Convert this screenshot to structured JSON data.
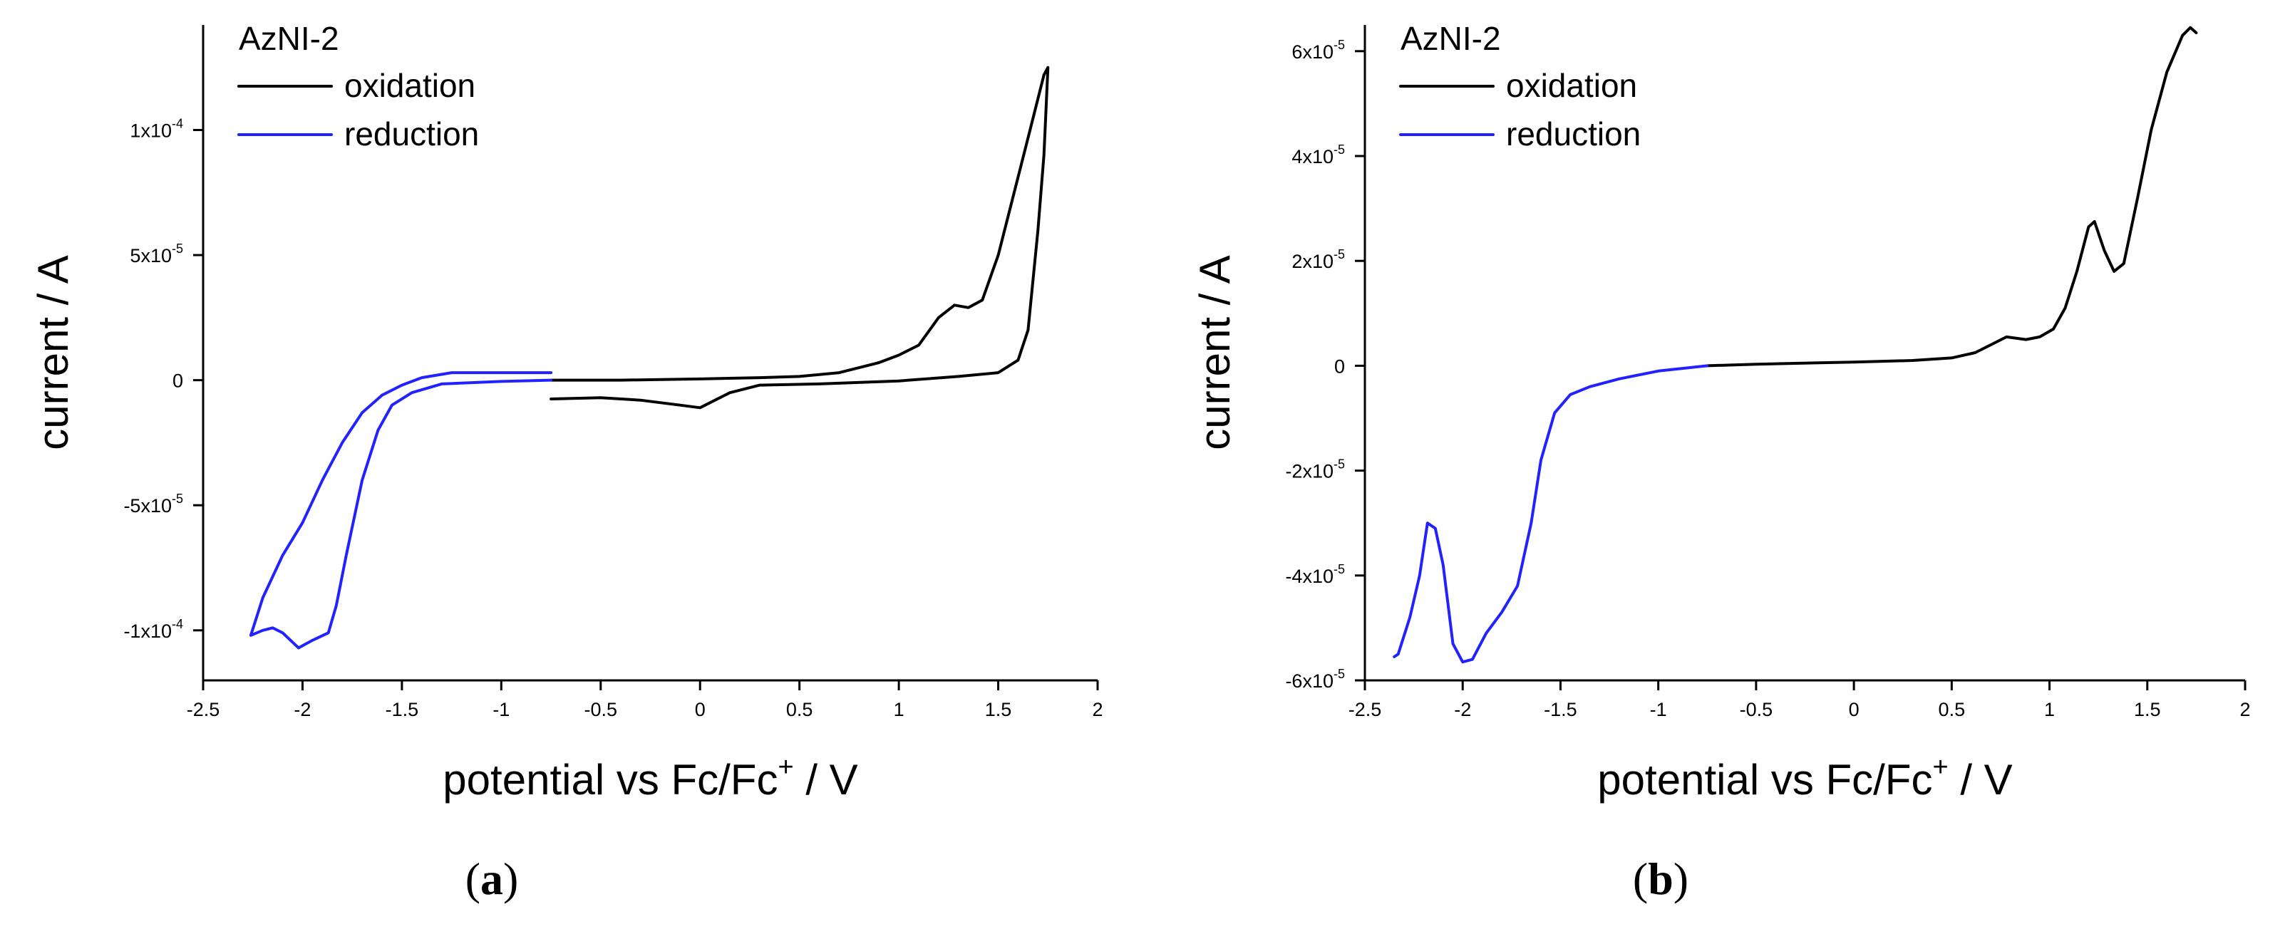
{
  "chart_data": [
    {
      "type": "line",
      "panel_label": "a",
      "title": "AzNI-2",
      "xlabel": "potential vs Fc/Fc",
      "xlabel_sup": "+",
      "xlabel_unit": " / V",
      "ylabel": "current / A",
      "xlim": [
        -2.5,
        2
      ],
      "ylim": [
        -0.00012,
        0.000142
      ],
      "xticks": [
        -2.5,
        -2,
        -1.5,
        -1,
        -0.5,
        0,
        0.5,
        1,
        1.5,
        2
      ],
      "xtick_labels": [
        "-2.5",
        "-2",
        "-1.5",
        "-1",
        "-0.5",
        "0",
        "0.5",
        "1",
        "1.5",
        "2"
      ],
      "yticks": [
        -0.0001,
        -5e-05,
        0,
        5e-05,
        0.0001
      ],
      "ytick_labels": [
        {
          "mantissa": "-1x10",
          "exp": "-4"
        },
        {
          "mantissa": "-5x10",
          "exp": "-5"
        },
        {
          "mantissa": "0",
          "exp": ""
        },
        {
          "mantissa": "5x10",
          "exp": "-5"
        },
        {
          "mantissa": "1x10",
          "exp": "-4"
        }
      ],
      "legend_position": "top-left",
      "series": [
        {
          "name": "oxidation",
          "color": "#000000",
          "points": [
            [
              -0.75,
              0.0
            ],
            [
              -0.4,
              0.0
            ],
            [
              0.0,
              5e-07
            ],
            [
              0.3,
              1e-06
            ],
            [
              0.5,
              1.5e-06
            ],
            [
              0.7,
              3e-06
            ],
            [
              0.8,
              5e-06
            ],
            [
              0.9,
              7e-06
            ],
            [
              1.0,
              1e-05
            ],
            [
              1.1,
              1.4e-05
            ],
            [
              1.2,
              2.5e-05
            ],
            [
              1.28,
              3e-05
            ],
            [
              1.35,
              2.9e-05
            ],
            [
              1.42,
              3.2e-05
            ],
            [
              1.5,
              5e-05
            ],
            [
              1.58,
              7.5e-05
            ],
            [
              1.66,
              0.0001
            ],
            [
              1.73,
              0.000122
            ],
            [
              1.75,
              0.000125
            ],
            [
              1.73,
              9e-05
            ],
            [
              1.7,
              6e-05
            ],
            [
              1.65,
              2e-05
            ],
            [
              1.6,
              8e-06
            ],
            [
              1.5,
              3e-06
            ],
            [
              1.3,
              1.5e-06
            ],
            [
              1.0,
              -3e-07
            ],
            [
              0.6,
              -1.5e-06
            ],
            [
              0.3,
              -2e-06
            ],
            [
              0.15,
              -5e-06
            ],
            [
              0.0,
              -1.1e-05
            ],
            [
              -0.1,
              -1e-05
            ],
            [
              -0.3,
              -8e-06
            ],
            [
              -0.5,
              -7e-06
            ],
            [
              -0.75,
              -7.5e-06
            ]
          ]
        },
        {
          "name": "reduction",
          "color": "#2222ff",
          "points": [
            [
              -0.75,
              0.0
            ],
            [
              -1.0,
              -5e-07
            ],
            [
              -1.3,
              -1.5e-06
            ],
            [
              -1.45,
              -5e-06
            ],
            [
              -1.55,
              -1e-05
            ],
            [
              -1.62,
              -2e-05
            ],
            [
              -1.7,
              -4e-05
            ],
            [
              -1.78,
              -7e-05
            ],
            [
              -1.83,
              -9e-05
            ],
            [
              -1.87,
              -0.000101
            ],
            [
              -1.95,
              -0.000104
            ],
            [
              -2.02,
              -0.000107
            ],
            [
              -2.1,
              -0.000101
            ],
            [
              -2.15,
              -9.9e-05
            ],
            [
              -2.2,
              -0.0001
            ],
            [
              -2.26,
              -0.000102
            ],
            [
              -2.2,
              -8.7e-05
            ],
            [
              -2.1,
              -7e-05
            ],
            [
              -2.0,
              -5.7e-05
            ],
            [
              -1.9,
              -4e-05
            ],
            [
              -1.8,
              -2.5e-05
            ],
            [
              -1.7,
              -1.3e-05
            ],
            [
              -1.6,
              -6e-06
            ],
            [
              -1.5,
              -2e-06
            ],
            [
              -1.4,
              1e-06
            ],
            [
              -1.25,
              3e-06
            ],
            [
              -1.0,
              3e-06
            ],
            [
              -0.75,
              3e-06
            ]
          ]
        }
      ]
    },
    {
      "type": "line",
      "panel_label": "b",
      "title": "AzNI-2",
      "xlabel": "potential vs Fc/Fc",
      "xlabel_sup": "+",
      "xlabel_unit": " / V",
      "ylabel": "current / A",
      "xlim": [
        -2.5,
        2
      ],
      "ylim": [
        -6e-05,
        6.5e-05
      ],
      "xticks": [
        -2.5,
        -2,
        -1.5,
        -1,
        -0.5,
        0,
        0.5,
        1,
        1.5,
        2
      ],
      "xtick_labels": [
        "-2.5",
        "-2",
        "-1.5",
        "-1",
        "-0.5",
        "0",
        "0.5",
        "1",
        "1.5",
        "2"
      ],
      "yticks": [
        -6e-05,
        -4e-05,
        -2e-05,
        0,
        2e-05,
        4e-05,
        6e-05
      ],
      "ytick_labels": [
        {
          "mantissa": "-6x10",
          "exp": "-5"
        },
        {
          "mantissa": "-4x10",
          "exp": "-5"
        },
        {
          "mantissa": "-2x10",
          "exp": "-5"
        },
        {
          "mantissa": "0",
          "exp": ""
        },
        {
          "mantissa": "2x10",
          "exp": "-5"
        },
        {
          "mantissa": "4x10",
          "exp": "-5"
        },
        {
          "mantissa": "6x10",
          "exp": "-5"
        }
      ],
      "legend_position": "top-left",
      "series": [
        {
          "name": "oxidation",
          "color": "#000000",
          "points": [
            [
              -0.75,
              0.0
            ],
            [
              -0.5,
              3e-07
            ],
            [
              0.0,
              7e-07
            ],
            [
              0.3,
              1e-06
            ],
            [
              0.5,
              1.5e-06
            ],
            [
              0.62,
              2.5e-06
            ],
            [
              0.7,
              4e-06
            ],
            [
              0.78,
              5.5e-06
            ],
            [
              0.88,
              5e-06
            ],
            [
              0.95,
              5.5e-06
            ],
            [
              1.02,
              7e-06
            ],
            [
              1.08,
              1.1e-05
            ],
            [
              1.14,
              1.8e-05
            ],
            [
              1.2,
              2.65e-05
            ],
            [
              1.23,
              2.75e-05
            ],
            [
              1.28,
              2.2e-05
            ],
            [
              1.33,
              1.8e-05
            ],
            [
              1.38,
              1.95e-05
            ],
            [
              1.45,
              3.2e-05
            ],
            [
              1.52,
              4.5e-05
            ],
            [
              1.6,
              5.6e-05
            ],
            [
              1.68,
              6.3e-05
            ],
            [
              1.72,
              6.45e-05
            ],
            [
              1.75,
              6.35e-05
            ]
          ]
        },
        {
          "name": "reduction",
          "color": "#2222ff",
          "points": [
            [
              -0.75,
              0.0
            ],
            [
              -1.0,
              -1e-06
            ],
            [
              -1.2,
              -2.5e-06
            ],
            [
              -1.35,
              -4e-06
            ],
            [
              -1.45,
              -5.5e-06
            ],
            [
              -1.53,
              -9e-06
            ],
            [
              -1.6,
              -1.8e-05
            ],
            [
              -1.65,
              -3e-05
            ],
            [
              -1.72,
              -4.2e-05
            ],
            [
              -1.8,
              -4.7e-05
            ],
            [
              -1.88,
              -5.1e-05
            ],
            [
              -1.95,
              -5.6e-05
            ],
            [
              -2.0,
              -5.65e-05
            ],
            [
              -2.05,
              -5.3e-05
            ],
            [
              -2.1,
              -3.8e-05
            ],
            [
              -2.14,
              -3.1e-05
            ],
            [
              -2.18,
              -3e-05
            ],
            [
              -2.22,
              -4e-05
            ],
            [
              -2.27,
              -4.8e-05
            ],
            [
              -2.33,
              -5.5e-05
            ],
            [
              -2.35,
              -5.55e-05
            ]
          ]
        }
      ]
    }
  ]
}
